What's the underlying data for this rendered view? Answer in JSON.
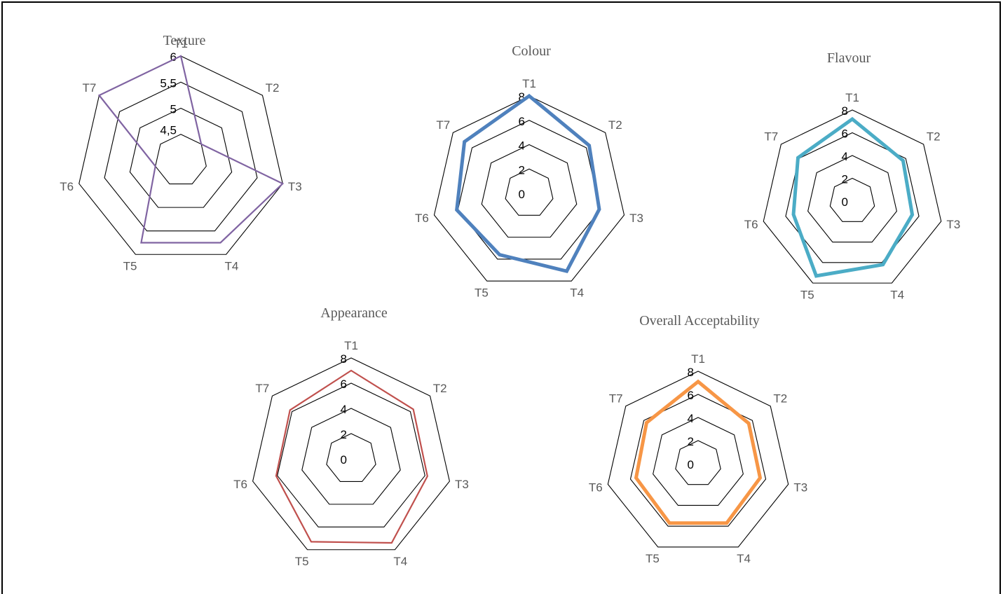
{
  "chart_data": [
    {
      "type": "radar",
      "title": "Texture",
      "categories": [
        "T1",
        "T2",
        "T3",
        "T4",
        "T5",
        "T6",
        "T7"
      ],
      "ticks": [
        "4,5",
        "5",
        "5,5",
        "6"
      ],
      "range": [
        4.5,
        6
      ],
      "series": [
        {
          "values": [
            6.0,
            4.5,
            6.0,
            5.75,
            5.75,
            4.5,
            6.0
          ],
          "color": "#8064A2",
          "width": "thin"
        }
      ]
    },
    {
      "type": "radar",
      "title": "Colour",
      "categories": [
        "T1",
        "T2",
        "T3",
        "T4",
        "T5",
        "T6",
        "T7"
      ],
      "ticks": [
        "0",
        "2",
        "4",
        "6",
        "8"
      ],
      "range": [
        0,
        8
      ],
      "series": [
        {
          "values": [
            8.0,
            6.3,
            5.9,
            7.1,
            5.6,
            6.1,
            6.8
          ],
          "color": "#4F81BD",
          "width": "thick"
        }
      ]
    },
    {
      "type": "radar",
      "title": "Flavour",
      "categories": [
        "T1",
        "T2",
        "T3",
        "T4",
        "T5",
        "T6",
        "T7"
      ],
      "ticks": [
        "0",
        "2",
        "4",
        "6",
        "8"
      ],
      "range": [
        0,
        8
      ],
      "series": [
        {
          "values": [
            7.2,
            5.7,
            5.4,
            6.2,
            7.3,
            5.3,
            6.1
          ],
          "color": "#4BACC6",
          "width": "thick"
        }
      ]
    },
    {
      "type": "radar",
      "title": "Appearance",
      "categories": [
        "T1",
        "T2",
        "T3",
        "T4",
        "T5",
        "T6",
        "T7"
      ],
      "ticks": [
        "0",
        "2",
        "4",
        "6",
        "8"
      ],
      "range": [
        0,
        8
      ],
      "series": [
        {
          "values": [
            7.0,
            6.3,
            6.2,
            7.4,
            7.3,
            6.1,
            6.2
          ],
          "color": "#C0504D",
          "width": "thin"
        }
      ]
    },
    {
      "type": "radar",
      "title": "Overall  Acceptability",
      "categories": [
        "T1",
        "T2",
        "T3",
        "T4",
        "T5",
        "T6",
        "T7"
      ],
      "ticks": [
        "0",
        "2",
        "4",
        "6",
        "8"
      ],
      "range": [
        0,
        8
      ],
      "series": [
        {
          "values": [
            7.1,
            5.6,
            5.5,
            5.7,
            5.7,
            5.5,
            5.7
          ],
          "color": "#F79646",
          "width": "thick"
        }
      ]
    }
  ]
}
